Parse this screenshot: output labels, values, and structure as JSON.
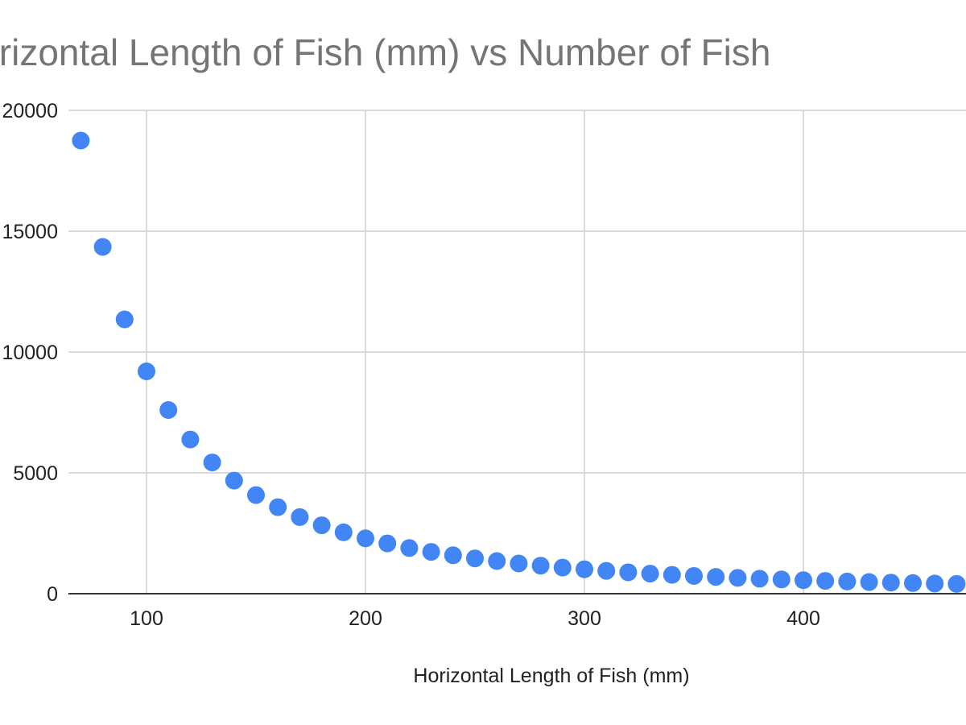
{
  "chart_data": {
    "type": "scatter",
    "title": "Horizontal Length of Fish (mm) vs Number of Fish",
    "xlabel": "Horizontal Length of Fish (mm)",
    "ylabel": "",
    "xlim": [
      65,
      480
    ],
    "ylim": [
      0,
      20000
    ],
    "grid": true,
    "legend": "none",
    "x_ticks": [
      100,
      200,
      300,
      400
    ],
    "y_ticks": [
      0,
      5000,
      10000,
      15000,
      20000
    ],
    "colors": {
      "point": "#4285f4",
      "grid": "#d9d9d9",
      "axis": "#333333"
    },
    "series": [
      {
        "x": [
          70,
          80,
          90,
          100,
          110,
          120,
          130,
          140,
          150,
          160,
          170,
          180,
          190,
          200,
          210,
          220,
          230,
          240,
          250,
          260,
          270,
          280,
          290,
          300,
          310,
          320,
          330,
          340,
          350,
          360,
          370,
          380,
          390,
          400,
          410,
          420,
          430,
          440,
          450,
          460,
          470
        ],
        "y": [
          18750,
          14350,
          11350,
          9200,
          7600,
          6380,
          5430,
          4680,
          4080,
          3580,
          3170,
          2830,
          2540,
          2290,
          2080,
          1890,
          1730,
          1590,
          1460,
          1350,
          1250,
          1160,
          1080,
          1010,
          945,
          885,
          830,
          780,
          735,
          695,
          655,
          620,
          590,
          560,
          530,
          505,
          482,
          460,
          440,
          420,
          405
        ]
      }
    ]
  }
}
